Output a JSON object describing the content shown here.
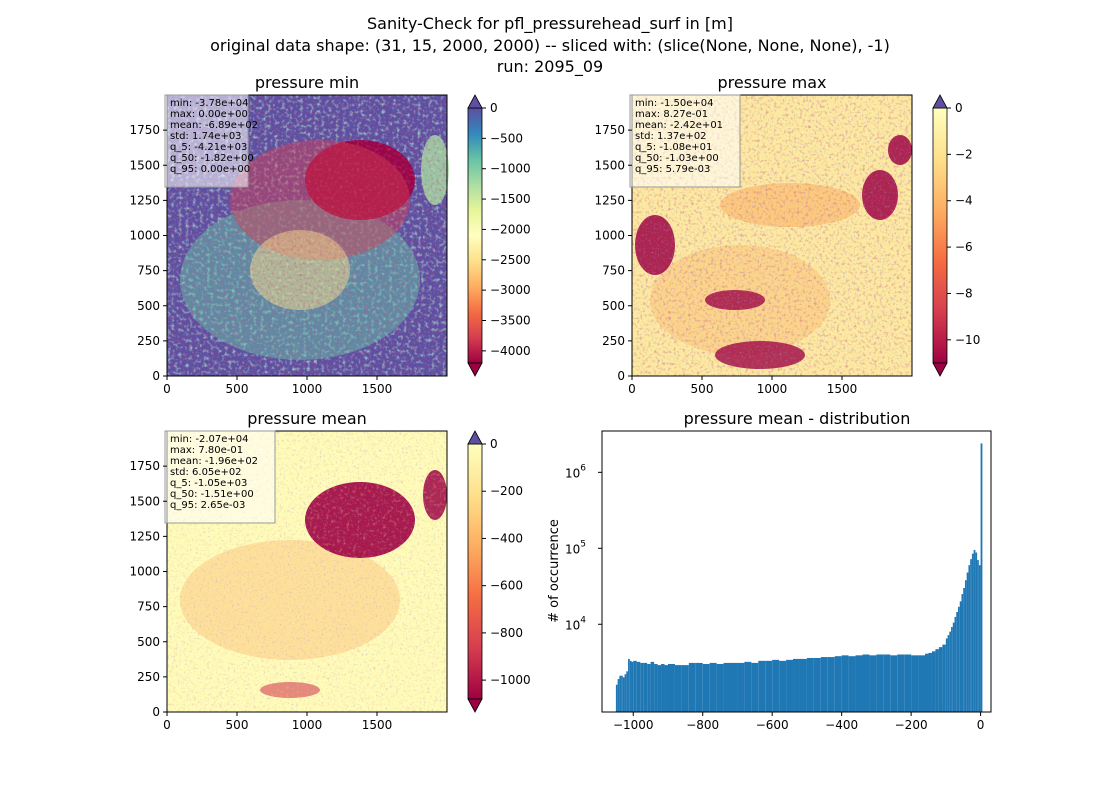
{
  "suptitle": {
    "line1": "Sanity-Check for pfl_pressurehead_surf in [m]",
    "line2": "original data shape: (31, 15, 2000, 2000) -- sliced with: (slice(None, None, None), -1)",
    "line3": "run: 2095_09"
  },
  "chart_data": [
    {
      "type": "heatmap",
      "title": "pressure min",
      "colormap": "Spectral",
      "extend": "both",
      "xlim": [
        0,
        2000
      ],
      "ylim": [
        0,
        2000
      ],
      "xticks": [
        "0",
        "500",
        "1000",
        "1500"
      ],
      "yticks": [
        "0",
        "250",
        "500",
        "750",
        "1000",
        "1250",
        "1500",
        "1750"
      ],
      "colorbar_range": [
        -4200,
        0
      ],
      "colorbar_ticks": [
        "0",
        "−500",
        "−1000",
        "−1500",
        "−2000",
        "−2500",
        "−3000",
        "−3500",
        "−4000"
      ],
      "colorbar_tick_values": [
        0,
        -500,
        -1000,
        -1500,
        -2000,
        -2500,
        -3000,
        -3500,
        -4000
      ],
      "stats": [
        "min: -3.78e+04",
        "max: 0.00e+00",
        "mean: -6.89e+02",
        "std: 1.74e+03",
        "q_5: -4.21e+03",
        "q_50: -1.82e+00",
        "q_95: 0.00e+00"
      ]
    },
    {
      "type": "heatmap",
      "title": "pressure max",
      "colormap": "Spectral",
      "extend": "both",
      "xlim": [
        0,
        2000
      ],
      "ylim": [
        0,
        2000
      ],
      "xticks": [
        "0",
        "500",
        "1000",
        "1500"
      ],
      "yticks": [
        "0",
        "250",
        "500",
        "750",
        "1000",
        "1250",
        "1500",
        "1750"
      ],
      "colorbar_range": [
        -11,
        0
      ],
      "colorbar_ticks": [
        "0",
        "−2",
        "−4",
        "−6",
        "−8",
        "−10"
      ],
      "colorbar_tick_values": [
        0,
        -2,
        -4,
        -6,
        -8,
        -10
      ],
      "stats": [
        "min: -1.50e+04",
        "max: 8.27e-01",
        "mean: -2.42e+01",
        "std: 1.37e+02",
        "q_5: -1.08e+01",
        "q_50: -1.03e+00",
        "q_95: 5.79e-03"
      ]
    },
    {
      "type": "heatmap",
      "title": "pressure mean",
      "colormap": "Spectral",
      "extend": "both",
      "xlim": [
        0,
        2000
      ],
      "ylim": [
        0,
        2000
      ],
      "xticks": [
        "0",
        "500",
        "1000",
        "1500"
      ],
      "yticks": [
        "0",
        "250",
        "500",
        "750",
        "1000",
        "1250",
        "1500",
        "1750"
      ],
      "colorbar_range": [
        -1080,
        0
      ],
      "colorbar_ticks": [
        "0",
        "−200",
        "−400",
        "−600",
        "−800",
        "−1000"
      ],
      "colorbar_tick_values": [
        0,
        -200,
        -400,
        -600,
        -800,
        -1000
      ],
      "stats": [
        "min: -2.07e+04",
        "max: 7.80e-01",
        "mean: -1.96e+02",
        "std: 6.05e+02",
        "q_5: -1.05e+03",
        "q_50: -1.51e+00",
        "q_95: 2.65e-03"
      ]
    },
    {
      "type": "bar",
      "title": "pressure mean - distribution",
      "xlabel": "",
      "ylabel": "# of occurrence",
      "yscale": "log",
      "color": "#1f77b4",
      "xlim": [
        -1090,
        30
      ],
      "ylim": [
        700,
        3500000
      ],
      "xticks": [
        "−1000",
        "−800",
        "−600",
        "−400",
        "−200",
        "0"
      ],
      "xtick_values": [
        -1000,
        -800,
        -600,
        -400,
        -200,
        0
      ],
      "yticks": [
        "10",
        "10",
        "10"
      ],
      "ytick_exponents": [
        "4",
        "5",
        "6"
      ],
      "ytick_values": [
        10000,
        100000,
        1000000
      ],
      "bin_width": 5.25,
      "x": [
        -1050,
        -1045,
        -1040,
        -1035,
        -1030,
        -1025,
        -1020,
        -1015,
        -1010,
        -1005,
        -1000,
        -990,
        -980,
        -970,
        -960,
        -950,
        -940,
        -930,
        -920,
        -910,
        -900,
        -880,
        -860,
        -840,
        -820,
        -800,
        -780,
        -760,
        -740,
        -720,
        -700,
        -680,
        -660,
        -640,
        -620,
        -600,
        -580,
        -560,
        -540,
        -520,
        -500,
        -480,
        -460,
        -440,
        -420,
        -400,
        -380,
        -360,
        -340,
        -320,
        -300,
        -280,
        -260,
        -240,
        -220,
        -200,
        -180,
        -160,
        -150,
        -140,
        -130,
        -120,
        -110,
        -100,
        -95,
        -90,
        -85,
        -80,
        -75,
        -70,
        -65,
        -60,
        -55,
        -50,
        -45,
        -40,
        -35,
        -30,
        -25,
        -20,
        -15,
        -10,
        -5,
        0
      ],
      "values": [
        1600,
        1900,
        2100,
        2100,
        2000,
        2200,
        2400,
        3500,
        3300,
        3200,
        3300,
        3200,
        3100,
        3100,
        3000,
        3200,
        3000,
        2900,
        3000,
        2900,
        3000,
        2900,
        2900,
        3100,
        3100,
        3000,
        3100,
        3000,
        3100,
        3100,
        3100,
        3200,
        3100,
        3300,
        3300,
        3400,
        3300,
        3400,
        3500,
        3500,
        3600,
        3600,
        3700,
        3700,
        3800,
        3900,
        3800,
        3900,
        4000,
        3900,
        4000,
        4000,
        3900,
        4000,
        4000,
        3900,
        3900,
        4100,
        4200,
        4400,
        4700,
        5000,
        5400,
        6500,
        7200,
        8000,
        9200,
        10500,
        12500,
        14500,
        17000,
        20000,
        25000,
        30000,
        38000,
        48000,
        60000,
        72000,
        85000,
        95000,
        88000,
        70000,
        60000,
        2400000
      ]
    }
  ]
}
